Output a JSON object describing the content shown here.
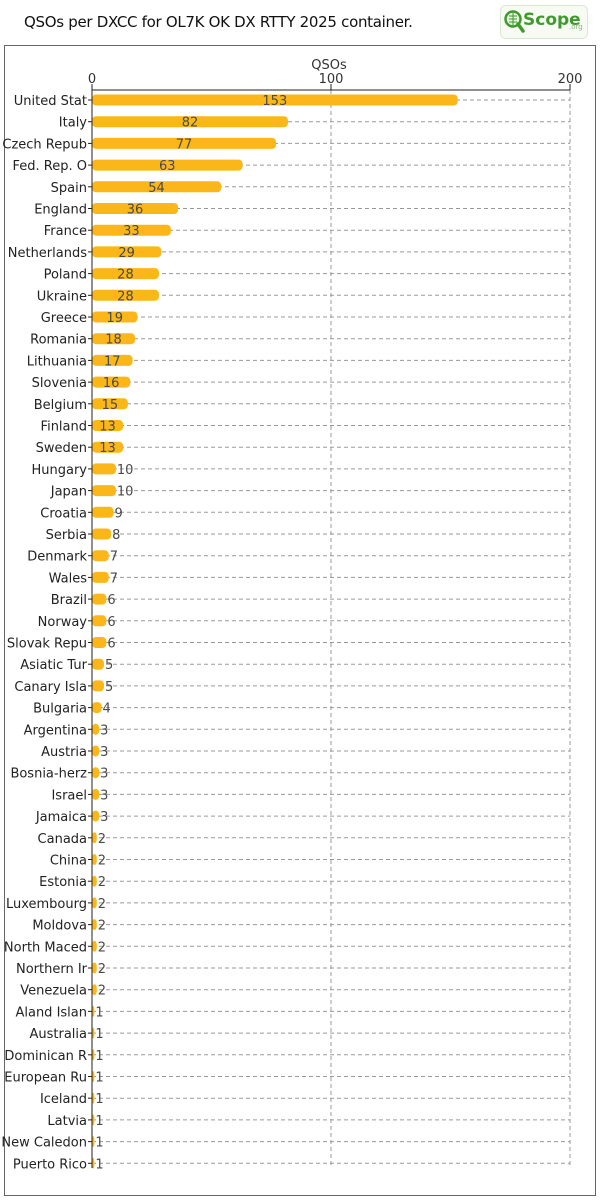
{
  "page": {
    "title": "QSOs per DXCC for OL7K OK DX RTTY 2025 container.",
    "logo_text": "Scope",
    "logo_sub": ".org"
  },
  "colors": {
    "bar": "#fbb719",
    "grid": "#9a9a9a",
    "axis": "#222222",
    "logo_green": "#3f9a2e"
  },
  "chart_data": {
    "type": "bar",
    "orientation": "horizontal",
    "xlabel": "QSOs",
    "xlim": [
      0,
      200
    ],
    "xticks": [
      0,
      100,
      200
    ],
    "grid": true,
    "categories": [
      "United Stat",
      "Italy",
      "Czech Repub",
      "Fed. Rep. O",
      "Spain",
      "England",
      "France",
      "Netherlands",
      "Poland",
      "Ukraine",
      "Greece",
      "Romania",
      "Lithuania",
      "Slovenia",
      "Belgium",
      "Finland",
      "Sweden",
      "Hungary",
      "Japan",
      "Croatia",
      "Serbia",
      "Denmark",
      "Wales",
      "Brazil",
      "Norway",
      "Slovak Repu",
      "Asiatic Tur",
      "Canary Isla",
      "Bulgaria",
      "Argentina",
      "Austria",
      "Bosnia-herz",
      "Israel",
      "Jamaica",
      "Canada",
      "China",
      "Estonia",
      "Luxembourg",
      "Moldova",
      "North Maced",
      "Northern Ir",
      "Venezuela",
      "Aland Islan",
      "Australia",
      "Dominican R",
      "European Ru",
      "Iceland",
      "Latvia",
      "New Caledon",
      "Puerto Rico"
    ],
    "values": [
      153,
      82,
      77,
      63,
      54,
      36,
      33,
      29,
      28,
      28,
      19,
      18,
      17,
      16,
      15,
      13,
      13,
      10,
      10,
      9,
      8,
      7,
      7,
      6,
      6,
      6,
      5,
      5,
      4,
      3,
      3,
      3,
      3,
      3,
      2,
      2,
      2,
      2,
      2,
      2,
      2,
      2,
      1,
      1,
      1,
      1,
      1,
      1,
      1,
      1
    ]
  }
}
